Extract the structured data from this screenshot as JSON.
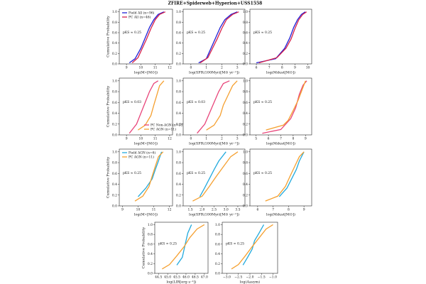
{
  "title": "ZFIRE+Spiderweb+Hyperion+USS1558",
  "chart_data": [
    {
      "type": "line",
      "ylabel": "Cumulative Probability",
      "xlabel": "log(M⋆[M⊙])",
      "annotation": "pKS ≈ 0.25",
      "legend": "upper left",
      "xlim": [
        8.5,
        12.2
      ],
      "xticks": [
        9,
        10,
        11,
        12
      ],
      "ylim": [
        0,
        1.05
      ],
      "yticks": [
        {
          "value": 0,
          "label": "0.0"
        },
        0.2,
        0.4,
        0.6,
        0.8,
        {
          "value": 1,
          "label": "1.0"
        }
      ],
      "series": [
        {
          "name": "Field All (n=96)",
          "color": "#1f1fd6",
          "x": [
            9.2,
            9.6,
            10,
            10.3,
            10.6,
            10.9,
            11.2,
            11.6
          ],
          "values": [
            0.02,
            0.1,
            0.3,
            0.5,
            0.7,
            0.85,
            0.95,
            1
          ]
        },
        {
          "name": "PC All (n=46)",
          "color": "#d6204a",
          "x": [
            9.4,
            9.8,
            10.1,
            10.4,
            10.7,
            11,
            11.3,
            11.7
          ],
          "values": [
            0.02,
            0.12,
            0.3,
            0.48,
            0.68,
            0.85,
            0.95,
            1
          ]
        }
      ]
    },
    {
      "type": "line",
      "xlabel": "log(SFR(100Myr)[M⊙ yr⁻¹])",
      "annotation": "pKS ≈ 0.25",
      "xlim": [
        -0.5,
        3.5
      ],
      "xticks": [
        0,
        1,
        2,
        3
      ],
      "ylim": [
        0,
        1.05
      ],
      "yticks": [
        {
          "value": 0,
          "label": "0.0"
        },
        0.2,
        0.4,
        0.6,
        0.8,
        {
          "value": 1,
          "label": "1.0"
        }
      ],
      "series": [
        {
          "color": "#1f1fd6",
          "x": [
            0.5,
            1,
            1.3,
            1.6,
            1.9,
            2.2,
            2.6,
            3
          ],
          "values": [
            0.02,
            0.1,
            0.3,
            0.5,
            0.7,
            0.85,
            0.95,
            1
          ]
        },
        {
          "color": "#d6204a",
          "x": [
            0.6,
            1.1,
            1.4,
            1.7,
            2,
            2.3,
            2.7,
            3.1
          ],
          "values": [
            0.02,
            0.12,
            0.3,
            0.48,
            0.68,
            0.85,
            0.95,
            1
          ]
        }
      ]
    },
    {
      "type": "line",
      "xlabel": "log(Mdust[M⊙])",
      "annotation": "pKS ≈ 0.25",
      "xlim": [
        5.5,
        10.3
      ],
      "xticks": [
        6,
        7,
        8,
        9,
        10
      ],
      "ylim": [
        0,
        1.05
      ],
      "yticks": [
        {
          "value": 0,
          "label": "0.0"
        },
        0.2,
        0.4,
        0.6,
        0.8,
        {
          "value": 1,
          "label": "1.0"
        }
      ],
      "series": [
        {
          "color": "#1f1fd6",
          "x": [
            6,
            7.5,
            8.2,
            8.6,
            8.9,
            9.2,
            9.5,
            9.8
          ],
          "values": [
            0.02,
            0.1,
            0.3,
            0.5,
            0.7,
            0.85,
            0.95,
            1
          ]
        },
        {
          "color": "#d6204a",
          "x": [
            6.2,
            7.6,
            8.3,
            8.7,
            9,
            9.3,
            9.6,
            9.9
          ],
          "values": [
            0.02,
            0.12,
            0.3,
            0.48,
            0.68,
            0.85,
            0.95,
            1
          ]
        }
      ]
    },
    {
      "type": "line",
      "ylabel": "Cumulative Probability",
      "xlabel": "log(M⋆[M⊙])",
      "annotation": "pKS ≈ 0.03",
      "legend": "lower right",
      "xlim": [
        8.5,
        12.2
      ],
      "xticks": [
        9,
        10,
        11,
        12
      ],
      "ylim": [
        0,
        1.05
      ],
      "yticks": [
        {
          "value": 0,
          "label": "0.0"
        },
        0.2,
        0.4,
        0.6,
        0.8,
        {
          "value": 1,
          "label": "1.0"
        }
      ],
      "series": [
        {
          "name": "PC Non-AGN (n=35)",
          "color": "#e8457a",
          "x": [
            9.2,
            9.7,
            10,
            10.3,
            10.6,
            10.9,
            11.2
          ],
          "values": [
            0.03,
            0.2,
            0.4,
            0.6,
            0.8,
            0.95,
            1
          ]
        },
        {
          "name": "PC AGN (n=11)",
          "color": "#f5a030",
          "x": [
            9.8,
            10.3,
            10.7,
            10.9,
            11.1,
            11.3,
            11.6
          ],
          "values": [
            0.09,
            0.18,
            0.36,
            0.55,
            0.73,
            0.91,
            1
          ]
        }
      ]
    },
    {
      "type": "line",
      "xlabel": "log(SFR(100Myr)[M⊙ yr⁻¹])",
      "annotation": "pKS ≈ 0.03",
      "xlim": [
        -0.5,
        3.5
      ],
      "xticks": [
        0,
        1,
        2,
        3
      ],
      "ylim": [
        0,
        1.05
      ],
      "yticks": [
        {
          "value": 0,
          "label": "0.0"
        },
        0.2,
        0.4,
        0.6,
        0.8,
        {
          "value": 1,
          "label": "1.0"
        }
      ],
      "series": [
        {
          "color": "#e8457a",
          "x": [
            0.4,
            0.9,
            1.2,
            1.5,
            1.8,
            2.1,
            2.5
          ],
          "values": [
            0.03,
            0.2,
            0.4,
            0.6,
            0.8,
            0.95,
            1
          ]
        },
        {
          "color": "#f5a030",
          "x": [
            1,
            1.5,
            1.9,
            2.1,
            2.4,
            2.7,
            3
          ],
          "values": [
            0.09,
            0.18,
            0.36,
            0.55,
            0.73,
            0.91,
            1
          ]
        }
      ]
    },
    {
      "type": "line",
      "xlabel": "log(Mdust[M⊙])",
      "annotation": "pKS ≈ 0.25",
      "xlim": [
        4.5,
        9.5
      ],
      "xticks": [
        5,
        6,
        7,
        8,
        9
      ],
      "ylim": [
        0,
        1.05
      ],
      "yticks": [
        {
          "value": 0,
          "label": "0.0"
        },
        0.2,
        0.4,
        0.6,
        0.8,
        {
          "value": 1,
          "label": "1.0"
        }
      ],
      "series": [
        {
          "color": "#e8457a",
          "x": [
            5.5,
            7,
            7.8,
            8.2,
            8.5,
            8.8,
            9.1
          ],
          "values": [
            0.03,
            0.1,
            0.3,
            0.5,
            0.75,
            0.92,
            1
          ]
        },
        {
          "color": "#f5a030",
          "x": [
            5.8,
            7.2,
            7.6,
            8,
            8.4,
            8.7,
            9
          ],
          "values": [
            0.09,
            0.18,
            0.27,
            0.45,
            0.64,
            0.82,
            1
          ]
        }
      ]
    },
    {
      "type": "line",
      "ylabel": "Cumulative Probability",
      "xlabel": "log(M⋆[M⊙])",
      "annotation": "pKS ≈ 0.25",
      "legend": "upper left",
      "xlim": [
        8.8,
        12.2
      ],
      "xticks": [
        9,
        10,
        11,
        12
      ],
      "ylim": [
        0,
        1.05
      ],
      "yticks": [
        {
          "value": 0,
          "label": "0.0"
        },
        0.2,
        0.4,
        0.6,
        0.8,
        {
          "value": 1,
          "label": "1.0"
        }
      ],
      "series": [
        {
          "name": "Field AGN (n=6)",
          "color": "#22aadd",
          "x": [
            10,
            10.5,
            10.9,
            11.1,
            11.3,
            11.5
          ],
          "values": [
            0.17,
            0.33,
            0.5,
            0.67,
            0.83,
            1
          ]
        },
        {
          "name": "PC AGN (n=11)",
          "color": "#f5a030",
          "x": [
            9.8,
            10.3,
            10.7,
            10.9,
            11.1,
            11.3,
            11.6
          ],
          "values": [
            0.09,
            0.18,
            0.36,
            0.55,
            0.73,
            0.91,
            1
          ]
        }
      ]
    },
    {
      "type": "line",
      "xlabel": "log(SFR(100Myr)[M⊙ yr⁻¹])",
      "annotation": "pKS ≈ 0.25",
      "xlim": [
        1.2,
        3.8
      ],
      "xticks": [
        1.5,
        {
          "value": 2,
          "label": "2.0"
        },
        2.5,
        {
          "value": 3,
          "label": "3.0"
        },
        3.5
      ],
      "ylim": [
        0,
        1.05
      ],
      "yticks": [
        {
          "value": 0,
          "label": "0.0"
        },
        0.2,
        0.4,
        0.6,
        0.8,
        {
          "value": 1,
          "label": "1.0"
        }
      ],
      "series": [
        {
          "color": "#22aadd",
          "x": [
            1.9,
            2.1,
            2.3,
            2.5,
            2.7,
            3
          ],
          "values": [
            0.17,
            0.33,
            0.5,
            0.67,
            0.83,
            1
          ]
        },
        {
          "color": "#f5a030",
          "x": [
            1.6,
            2,
            2.3,
            2.6,
            2.9,
            3.2,
            3.5
          ],
          "values": [
            0.09,
            0.18,
            0.36,
            0.55,
            0.73,
            0.91,
            1
          ]
        }
      ]
    },
    {
      "type": "line",
      "xlabel": "log(Mdust[M⊙])",
      "annotation": "pKS ≈ 0.25",
      "xlim": [
        5.5,
        9.5
      ],
      "xticks": [
        6,
        7,
        8,
        9
      ],
      "ylim": [
        0,
        1.05
      ],
      "yticks": [
        {
          "value": 0,
          "label": "0.0"
        },
        0.2,
        0.4,
        0.6,
        0.8,
        {
          "value": 1,
          "label": "1.0"
        }
      ],
      "series": [
        {
          "color": "#22aadd",
          "x": [
            7.4,
            7.9,
            8.2,
            8.5,
            8.7,
            9
          ],
          "values": [
            0.17,
            0.33,
            0.5,
            0.67,
            0.83,
            1
          ]
        },
        {
          "color": "#f5a030",
          "x": [
            6.5,
            7.3,
            7.8,
            8.1,
            8.4,
            8.7,
            9
          ],
          "values": [
            0.09,
            0.18,
            0.36,
            0.55,
            0.73,
            0.91,
            1
          ]
        }
      ]
    },
    {
      "type": "line",
      "ylabel": "Cumulative Probability",
      "xlabel": "log(LIR[erg s⁻¹])",
      "annotation": "pKS ≈ 0.25",
      "xlim": [
        44.3,
        47.2
      ],
      "xticks": [
        44.5,
        {
          "value": 45,
          "label": "45.0"
        },
        45.5,
        {
          "value": 46,
          "label": "46.0"
        },
        46.5,
        {
          "value": 47,
          "label": "47.0"
        }
      ],
      "ylim": [
        0,
        1.05
      ],
      "yticks": [
        {
          "value": 0,
          "label": "0.0"
        },
        0.2,
        0.4,
        0.6,
        0.8,
        {
          "value": 1,
          "label": "1.0"
        }
      ],
      "series": [
        {
          "color": "#22aadd",
          "x": [
            45.5,
            45.8,
            45.9,
            46,
            46.1,
            46.3
          ],
          "values": [
            0.17,
            0.33,
            0.5,
            0.67,
            0.83,
            1
          ]
        },
        {
          "color": "#f5a030",
          "x": [
            44.7,
            45.1,
            45.5,
            45.9,
            46.2,
            46.6,
            47
          ],
          "values": [
            0.09,
            0.18,
            0.36,
            0.55,
            0.73,
            0.91,
            1
          ]
        }
      ]
    },
    {
      "type": "line",
      "xlabel": "log(Aasym)",
      "annotation": "pKS ≈ 0.25",
      "xlim": [
        -3.2,
        -0.8
      ],
      "xticks": [
        {
          "value": -3,
          "label": "−3.0"
        },
        {
          "value": -2.5,
          "label": "−2.5"
        },
        {
          "value": -2,
          "label": "−2.0"
        },
        {
          "value": -1.5,
          "label": "−1.5"
        },
        {
          "value": -1,
          "label": "−1.0"
        }
      ],
      "ylim": [
        0,
        1.05
      ],
      "yticks": [
        {
          "value": 0,
          "label": "0.0"
        },
        0.2,
        0.4,
        0.6,
        0.8,
        {
          "value": 1,
          "label": "1.0"
        }
      ],
      "series": [
        {
          "color": "#22aadd",
          "x": [
            -2.3,
            -2.1,
            -1.9,
            -1.8,
            -1.6,
            -1.4
          ],
          "values": [
            0.17,
            0.33,
            0.5,
            0.67,
            0.83,
            1
          ]
        },
        {
          "color": "#f5a030",
          "x": [
            -2.8,
            -2.5,
            -2.2,
            -1.9,
            -1.6,
            -1.3,
            -1
          ],
          "values": [
            0.09,
            0.18,
            0.36,
            0.55,
            0.73,
            0.91,
            1
          ]
        }
      ]
    }
  ]
}
